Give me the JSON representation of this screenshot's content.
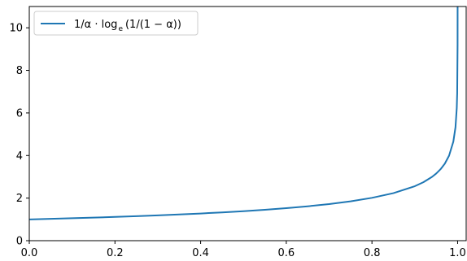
{
  "chart_data": {
    "type": "line",
    "title": "",
    "xlabel": "",
    "ylabel": "",
    "xlim": [
      0.0,
      1.02
    ],
    "ylim": [
      0,
      11
    ],
    "x_ticks": [
      "0.0",
      "0.2",
      "0.4",
      "0.6",
      "0.8",
      "1.0"
    ],
    "y_ticks": [
      "0",
      "2",
      "4",
      "6",
      "8",
      "10"
    ],
    "grid": false,
    "legend_position": "top-left",
    "series": [
      {
        "name": "1/α · log_e (1/(1 − α))",
        "color": "#1f77b4",
        "x": [
          0.001,
          0.05,
          0.1,
          0.15,
          0.2,
          0.25,
          0.3,
          0.35,
          0.4,
          0.45,
          0.5,
          0.55,
          0.6,
          0.65,
          0.7,
          0.75,
          0.8,
          0.85,
          0.9,
          0.92,
          0.94,
          0.95,
          0.96,
          0.97,
          0.98,
          0.99,
          0.995,
          0.998,
          0.999,
          0.9999,
          0.99999
        ],
        "y": [
          1.0,
          1.026,
          1.054,
          1.083,
          1.116,
          1.151,
          1.189,
          1.231,
          1.277,
          1.329,
          1.386,
          1.452,
          1.527,
          1.615,
          1.72,
          1.848,
          2.012,
          2.232,
          2.558,
          2.745,
          2.993,
          3.153,
          3.353,
          3.615,
          3.992,
          4.652,
          5.325,
          6.227,
          6.918,
          9.211,
          11.51
        ]
      }
    ]
  },
  "legend": {
    "label_main": "1/α · log",
    "label_sub": "e",
    "label_rest": "(1/(1 − α))"
  }
}
